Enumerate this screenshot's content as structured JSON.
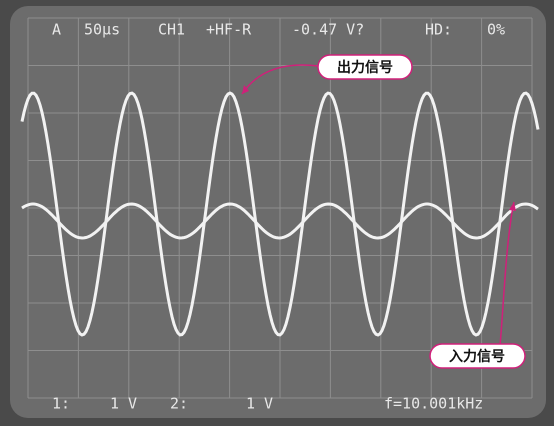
{
  "screen": {
    "top": [
      "A",
      "50μs",
      "CH1",
      "+HF-R",
      "-0.47 V?",
      "HD:",
      "0%"
    ],
    "bottom": [
      "1:",
      "1 V",
      "2:",
      "1 V",
      "f=10.001kHz"
    ]
  },
  "callouts": {
    "output": "出力信号",
    "input": "入力信号"
  }
}
